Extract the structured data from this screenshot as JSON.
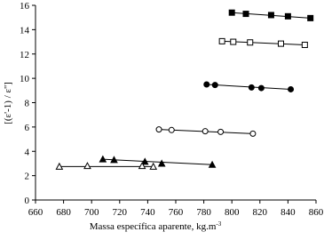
{
  "chart_data": {
    "type": "scatter",
    "x_label": "Massa específica aparente, kg.m",
    "x_label_superscript": "-3",
    "y_label": "[(ε'-1) / ε'']",
    "xlim": [
      660,
      860
    ],
    "xticks": [
      660,
      680,
      700,
      720,
      740,
      760,
      780,
      800,
      820,
      840,
      860
    ],
    "ylim": [
      0,
      16
    ],
    "yticks": [
      0,
      2,
      4,
      6,
      8,
      10,
      12,
      14,
      16
    ],
    "trend_lines": true,
    "series": [
      {
        "marker": "square",
        "filled": true,
        "color": "#000000",
        "x": [
          800,
          810,
          828,
          840,
          856
        ],
        "values": [
          15.4,
          15.3,
          15.2,
          15.1,
          14.95
        ]
      },
      {
        "marker": "square",
        "filled": false,
        "color": "#000000",
        "x": [
          793,
          801,
          813,
          835,
          852
        ],
        "values": [
          13.05,
          13.0,
          12.95,
          12.85,
          12.75
        ]
      },
      {
        "marker": "circle",
        "filled": true,
        "color": "#000000",
        "x": [
          782,
          788,
          814,
          821,
          842
        ],
        "values": [
          9.5,
          9.45,
          9.25,
          9.2,
          9.1
        ]
      },
      {
        "marker": "circle",
        "filled": false,
        "color": "#000000",
        "x": [
          748,
          757,
          781,
          792,
          815
        ],
        "values": [
          5.8,
          5.75,
          5.65,
          5.6,
          5.45
        ]
      },
      {
        "marker": "triangle",
        "filled": true,
        "color": "#000000",
        "x": [
          708,
          716,
          738,
          750,
          786
        ],
        "values": [
          3.35,
          3.3,
          3.15,
          3.0,
          2.9
        ]
      },
      {
        "marker": "triangle",
        "filled": false,
        "color": "#000000",
        "x": [
          677,
          697,
          736,
          744
        ],
        "values": [
          2.75,
          2.8,
          2.8,
          2.75
        ]
      }
    ]
  }
}
